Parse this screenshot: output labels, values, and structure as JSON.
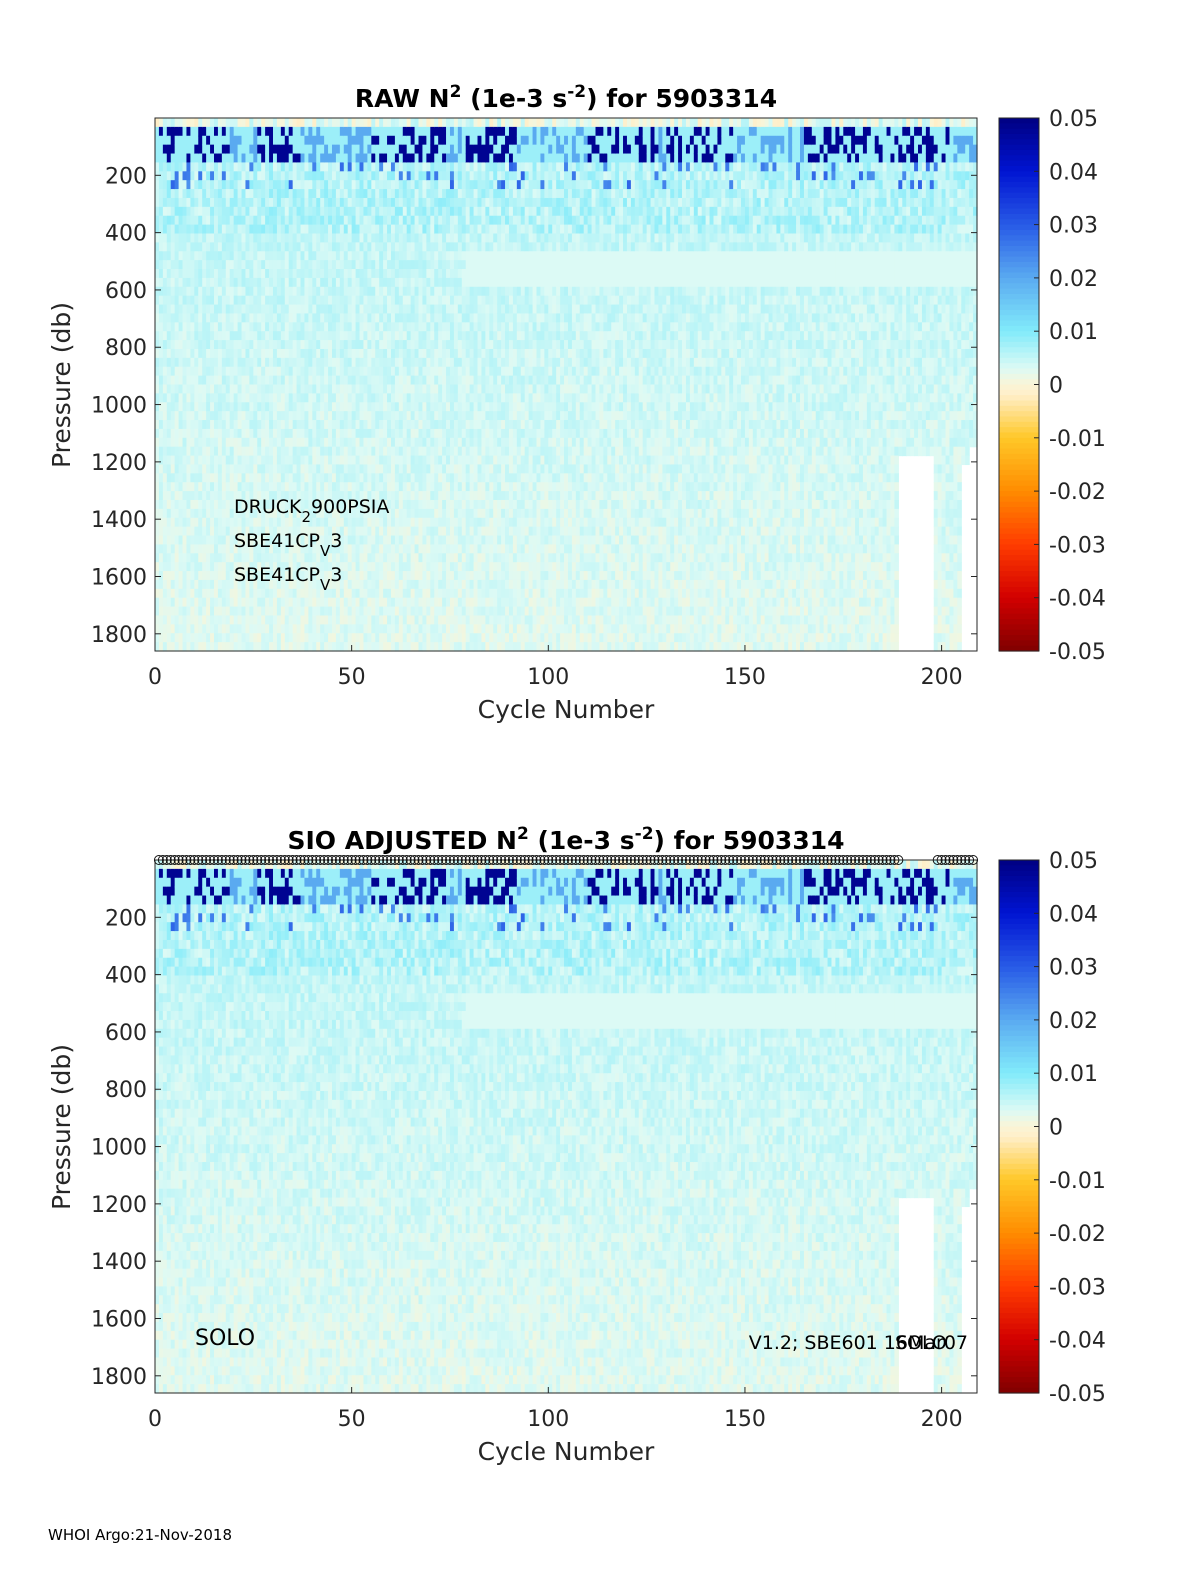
{
  "footer": "WHOI Argo:21-Nov-2018",
  "colormap": {
    "ticks": [
      "0.05",
      "0.04",
      "0.03",
      "0.02",
      "0.01",
      "0",
      "-0.01",
      "-0.02",
      "-0.03",
      "-0.04",
      "-0.05"
    ],
    "range": [
      -0.05,
      0.05
    ]
  },
  "chart_data": [
    {
      "type": "heatmap",
      "title": "RAW N",
      "title_sup": "2",
      "title_mid": " (1e-3 s",
      "title_sup2": "-2",
      "title_end": ") for 5903314",
      "xlabel": "Cycle Number",
      "ylabel": "Pressure (db)",
      "xlim": [
        0,
        209
      ],
      "ylim": [
        1860,
        0
      ],
      "xticks": [
        "0",
        "50",
        "100",
        "150",
        "200"
      ],
      "yticks": [
        "200",
        "400",
        "600",
        "800",
        "1000",
        "1200",
        "1400",
        "1600",
        "1800"
      ],
      "clim": [
        -0.05,
        0.05
      ],
      "annotations": {
        "line1_pre": "DRUCK",
        "line1_sub": "2",
        "line1_post": "900PSIA",
        "line2_pre": "SBE41CP",
        "line2_sub": "V",
        "line2_post": "3",
        "line3_pre": "SBE41CP",
        "line3_sub": "V",
        "line3_post": "3"
      }
    },
    {
      "type": "heatmap",
      "title": "SIO  ADJUSTED N",
      "title_sup": "2",
      "title_mid": " (1e-3 s",
      "title_sup2": "-2",
      "title_end": ") for 5903314",
      "xlabel": "Cycle Number",
      "ylabel": "Pressure (db)",
      "xlim": [
        0,
        209
      ],
      "ylim": [
        1860,
        0
      ],
      "xticks": [
        "0",
        "50",
        "100",
        "150",
        "200"
      ],
      "yticks": [
        "200",
        "400",
        "600",
        "800",
        "1000",
        "1200",
        "1400",
        "1600",
        "1800"
      ],
      "clim": [
        -0.05,
        0.05
      ],
      "annotations": {
        "left": "SOLO",
        "right": "V1.2; SBE601 16Mar07",
        "right_overlap": "SOLO"
      }
    }
  ]
}
